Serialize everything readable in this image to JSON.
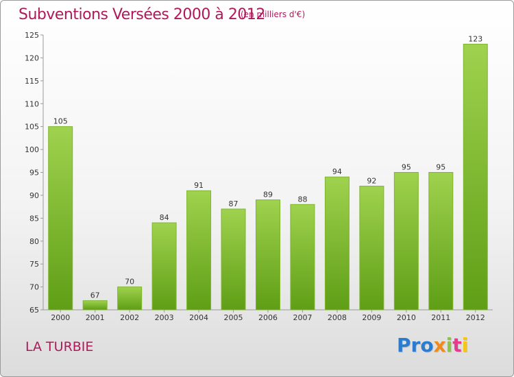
{
  "chart_data": {
    "type": "bar",
    "title": "Subventions Versées 2000 à 2012",
    "subtitle": "(en milliers d'€)",
    "categories": [
      "2000",
      "2001",
      "2002",
      "2003",
      "2004",
      "2005",
      "2006",
      "2007",
      "2008",
      "2009",
      "2010",
      "2011",
      "2012"
    ],
    "values": [
      105,
      67,
      70,
      84,
      91,
      87,
      89,
      88,
      94,
      92,
      95,
      95,
      123
    ],
    "ylim": [
      65,
      125
    ],
    "yticks": [
      65,
      70,
      75,
      80,
      85,
      90,
      95,
      100,
      105,
      110,
      115,
      120,
      125
    ],
    "grid": false,
    "bar_color_top": "#9fd24e",
    "bar_color_bottom": "#5f9e16"
  },
  "footer": {
    "place": "LA TURBIE",
    "logo": {
      "letters": [
        "Pro",
        "x",
        "i",
        "t",
        "i"
      ]
    }
  }
}
